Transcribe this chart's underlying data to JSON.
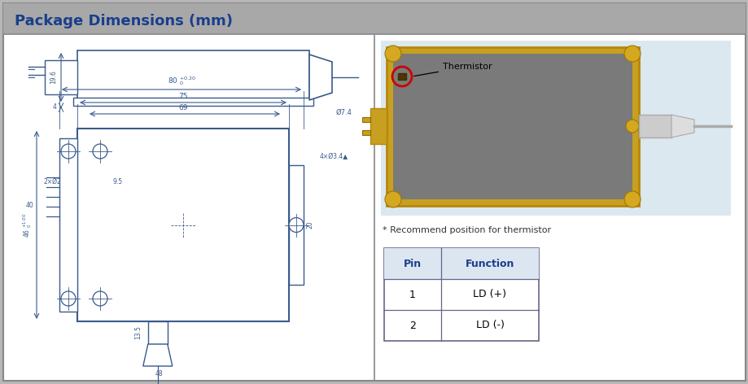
{
  "title": "Package Dimensions (mm)",
  "title_color": "#1a3e8c",
  "title_bg": "#a8a8a8",
  "bg_color": "#ffffff",
  "border_color": "#888888",
  "outer_bg": "#b8b8b8",
  "thermistor_label": "Thermistor",
  "recommend_text": "* Recommend position for thermistor",
  "table_headers": [
    "Pin",
    "Function"
  ],
  "table_rows": [
    [
      "1",
      "LD (+)"
    ],
    [
      "2",
      "LD (-)"
    ]
  ],
  "table_header_bg": "#dce6f1",
  "table_border": "#666688",
  "drawing_line_color": "#3a5a8c",
  "dim_text_color": "#3a5a8c"
}
